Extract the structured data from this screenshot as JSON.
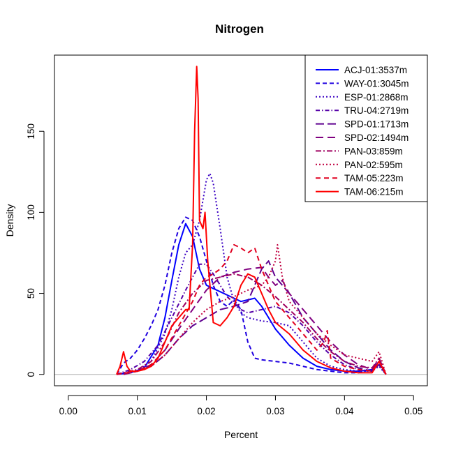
{
  "chart_data": {
    "type": "line",
    "title": "Nitrogen",
    "xlabel": "Percent",
    "ylabel": "Density",
    "xlim": [
      -0.002,
      0.052
    ],
    "ylim": [
      -7,
      197
    ],
    "xticks": [
      "0.00",
      "0.01",
      "0.02",
      "0.03",
      "0.04",
      "0.05"
    ],
    "xtick_values": [
      0.0,
      0.01,
      0.02,
      0.03,
      0.04,
      0.05
    ],
    "yticks": [
      "0",
      "50",
      "100",
      "150"
    ],
    "ytick_values": [
      0,
      50,
      100,
      150
    ],
    "grid": false,
    "baseline": 0,
    "baseline_color": "#bebebe",
    "legend_position": "top-right",
    "series": [
      {
        "name": "ACJ-01:3537m",
        "color": "#0000ff",
        "dash": "solid",
        "x": [
          0.007,
          0.009,
          0.011,
          0.013,
          0.014,
          0.015,
          0.016,
          0.017,
          0.018,
          0.019,
          0.02,
          0.021,
          0.022,
          0.023,
          0.024,
          0.025,
          0.026,
          0.027,
          0.028,
          0.029,
          0.03,
          0.032,
          0.034,
          0.036,
          0.038,
          0.04,
          0.042,
          0.044,
          0.045,
          0.046
        ],
        "y": [
          0,
          1,
          4,
          18,
          35,
          58,
          80,
          93,
          85,
          65,
          55,
          53,
          51,
          49,
          47,
          45,
          46,
          47,
          42,
          35,
          28,
          18,
          10,
          5,
          3,
          2,
          2,
          3,
          8,
          0
        ]
      },
      {
        "name": "WAY-01:3045m",
        "color": "#1f00e0",
        "dash": "6,4",
        "x": [
          0.007,
          0.008,
          0.009,
          0.01,
          0.011,
          0.012,
          0.013,
          0.014,
          0.015,
          0.016,
          0.017,
          0.018,
          0.019,
          0.02,
          0.021,
          0.022,
          0.023,
          0.024,
          0.025,
          0.026,
          0.027,
          0.028,
          0.03,
          0.032,
          0.034,
          0.036,
          0.038,
          0.04,
          0.042,
          0.044,
          0.045,
          0.046
        ],
        "y": [
          0,
          7,
          10,
          15,
          22,
          30,
          40,
          55,
          75,
          90,
          97,
          95,
          85,
          70,
          55,
          45,
          42,
          46,
          40,
          20,
          10,
          9,
          8,
          7,
          5,
          3,
          2,
          1,
          1,
          3,
          6,
          0
        ]
      },
      {
        "name": "ESP-01:2868m",
        "color": "#3a00c4",
        "dash": "2,3",
        "x": [
          0.007,
          0.01,
          0.012,
          0.014,
          0.015,
          0.016,
          0.017,
          0.018,
          0.019,
          0.02,
          0.0205,
          0.021,
          0.022,
          0.023,
          0.024,
          0.025,
          0.026,
          0.028,
          0.03,
          0.032,
          0.034,
          0.036,
          0.038,
          0.04,
          0.042,
          0.044,
          0.045,
          0.046
        ],
        "y": [
          0,
          2,
          8,
          25,
          40,
          60,
          75,
          80,
          95,
          120,
          124,
          118,
          90,
          60,
          45,
          38,
          35,
          33,
          32,
          30,
          20,
          10,
          5,
          3,
          2,
          2,
          5,
          0
        ]
      },
      {
        "name": "TRU-04:2719m",
        "color": "#5500a8",
        "dash": "6,3,1.5,3",
        "x": [
          0.007,
          0.009,
          0.011,
          0.013,
          0.015,
          0.017,
          0.018,
          0.019,
          0.02,
          0.021,
          0.022,
          0.023,
          0.024,
          0.025,
          0.026,
          0.028,
          0.03,
          0.032,
          0.034,
          0.036,
          0.038,
          0.04,
          0.042,
          0.044,
          0.045,
          0.046
        ],
        "y": [
          0,
          3,
          8,
          18,
          35,
          52,
          60,
          68,
          68,
          62,
          55,
          48,
          44,
          40,
          38,
          40,
          42,
          38,
          30,
          20,
          12,
          6,
          3,
          2,
          8,
          0
        ]
      },
      {
        "name": "SPD-01:1713m",
        "color": "#5f0090",
        "dash": "12,5",
        "x": [
          0.008,
          0.01,
          0.012,
          0.014,
          0.016,
          0.018,
          0.02,
          0.022,
          0.024,
          0.026,
          0.027,
          0.028,
          0.029,
          0.03,
          0.031,
          0.032,
          0.034,
          0.036,
          0.038,
          0.04,
          0.042,
          0.044,
          0.045,
          0.046
        ],
        "y": [
          0,
          2,
          5,
          12,
          22,
          30,
          35,
          40,
          42,
          45,
          55,
          65,
          70,
          60,
          55,
          50,
          35,
          25,
          15,
          8,
          4,
          2,
          6,
          0
        ]
      },
      {
        "name": "SPD-02:1494m",
        "color": "#800080",
        "dash": "11,6",
        "x": [
          0.008,
          0.01,
          0.012,
          0.014,
          0.016,
          0.018,
          0.02,
          0.022,
          0.024,
          0.026,
          0.028,
          0.029,
          0.03,
          0.031,
          0.032,
          0.034,
          0.036,
          0.038,
          0.04,
          0.042,
          0.044,
          0.045,
          0.046
        ],
        "y": [
          0,
          2,
          6,
          15,
          28,
          40,
          52,
          60,
          63,
          65,
          66,
          60,
          55,
          58,
          50,
          40,
          30,
          20,
          12,
          6,
          3,
          10,
          0
        ]
      },
      {
        "name": "PAN-03:859m",
        "color": "#a00060",
        "dash": "8,3,2,3",
        "x": [
          0.007,
          0.01,
          0.012,
          0.014,
          0.016,
          0.018,
          0.02,
          0.022,
          0.024,
          0.026,
          0.028,
          0.03,
          0.032,
          0.034,
          0.036,
          0.038,
          0.04,
          0.042,
          0.044,
          0.045,
          0.046
        ],
        "y": [
          0,
          3,
          8,
          20,
          38,
          50,
          58,
          60,
          62,
          60,
          55,
          48,
          40,
          32,
          22,
          14,
          8,
          5,
          4,
          10,
          0
        ]
      },
      {
        "name": "PAN-02:595m",
        "color": "#c00040",
        "dash": "2,3",
        "x": [
          0.008,
          0.01,
          0.012,
          0.014,
          0.016,
          0.018,
          0.02,
          0.022,
          0.024,
          0.026,
          0.028,
          0.029,
          0.03,
          0.0303,
          0.031,
          0.032,
          0.034,
          0.036,
          0.038,
          0.04,
          0.042,
          0.044,
          0.045,
          0.046
        ],
        "y": [
          0,
          2,
          5,
          12,
          22,
          32,
          40,
          45,
          48,
          52,
          55,
          60,
          70,
          80,
          60,
          45,
          35,
          25,
          18,
          12,
          10,
          8,
          14,
          0
        ]
      },
      {
        "name": "TAM-05:223m",
        "color": "#e00020",
        "dash": "7,5",
        "x": [
          0.007,
          0.01,
          0.012,
          0.014,
          0.016,
          0.018,
          0.019,
          0.02,
          0.021,
          0.022,
          0.023,
          0.024,
          0.025,
          0.026,
          0.027,
          0.028,
          0.03,
          0.032,
          0.034,
          0.036,
          0.037,
          0.0375,
          0.038,
          0.04,
          0.042,
          0.044,
          0.045,
          0.046
        ],
        "y": [
          0,
          2,
          6,
          15,
          30,
          45,
          55,
          60,
          62,
          65,
          70,
          80,
          78,
          75,
          78,
          65,
          45,
          35,
          25,
          15,
          20,
          27,
          10,
          5,
          3,
          2,
          8,
          0
        ]
      },
      {
        "name": "TAM-06:215m",
        "color": "#ff0000",
        "dash": "solid",
        "x": [
          0.007,
          0.0075,
          0.008,
          0.0085,
          0.009,
          0.01,
          0.011,
          0.012,
          0.013,
          0.014,
          0.015,
          0.016,
          0.017,
          0.0175,
          0.018,
          0.0183,
          0.0186,
          0.0188,
          0.019,
          0.0195,
          0.0198,
          0.0202,
          0.021,
          0.022,
          0.023,
          0.024,
          0.025,
          0.026,
          0.027,
          0.028,
          0.029,
          0.03,
          0.032,
          0.034,
          0.036,
          0.038,
          0.04,
          0.042,
          0.044,
          0.045,
          0.046
        ],
        "y": [
          0,
          5,
          14,
          5,
          2,
          2,
          3,
          5,
          10,
          20,
          30,
          35,
          40,
          40,
          80,
          150,
          190,
          170,
          95,
          90,
          100,
          70,
          32,
          30,
          35,
          42,
          55,
          62,
          60,
          50,
          40,
          32,
          25,
          15,
          8,
          4,
          2,
          1,
          1,
          8,
          0
        ]
      }
    ]
  }
}
